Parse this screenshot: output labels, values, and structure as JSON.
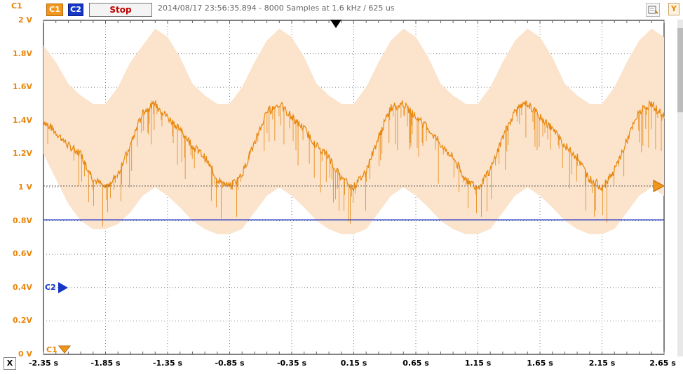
{
  "toolbar": {
    "corner_channel": "C1",
    "c1_label": "C1",
    "c2_label": "C2",
    "stop_label": "Stop",
    "status": "2014/08/17 23:56:35.894 - 8000 Samples at 1.6 kHz / 625 us",
    "tool_icon": "options-icon",
    "y_label": "Y"
  },
  "axes": {
    "y_ticks": [
      "2 V",
      "1.8V",
      "1.6V",
      "1.4V",
      "1.2V",
      "1 V",
      "0.8V",
      "0.6V",
      "0.4V",
      "0.2V",
      "0 V"
    ],
    "x_ticks": [
      "-2.35 s",
      "-1.85 s",
      "-1.35 s",
      "-0.85 s",
      "-0.35 s",
      "0.15 s",
      "0.65 s",
      "1.15 s",
      "1.65 s",
      "2.15 s",
      "2.65 s"
    ],
    "x_button": "X"
  },
  "markers": {
    "c2_label": "C2",
    "c1_label": "C1"
  },
  "colors": {
    "c1": "#e8870c",
    "c1_env": "#fbe3cc",
    "c2": "#1a2fc0",
    "grid": "#808080"
  },
  "chart_data": {
    "type": "line",
    "ylim": [
      0,
      2
    ],
    "xlim": [
      -2.35,
      2.65
    ],
    "grid": true,
    "series": [
      {
        "name": "C1",
        "x": [
          -2.35,
          -2.25,
          -2.15,
          -2.05,
          -1.95,
          -1.85,
          -1.75,
          -1.65,
          -1.55,
          -1.45,
          -1.35,
          -1.25,
          -1.15,
          -1.05,
          -0.95,
          -0.85,
          -0.75,
          -0.65,
          -0.55,
          -0.45,
          -0.35,
          -0.25,
          -0.15,
          -0.05,
          0.05,
          0.15,
          0.25,
          0.35,
          0.45,
          0.55,
          0.65,
          0.75,
          0.85,
          0.95,
          1.05,
          1.15,
          1.25,
          1.35,
          1.45,
          1.55,
          1.65,
          1.75,
          1.85,
          1.95,
          2.05,
          2.15,
          2.25,
          2.35,
          2.45,
          2.55,
          2.65
        ],
        "y": [
          1.4,
          1.33,
          1.25,
          1.2,
          1.05,
          1.0,
          1.08,
          1.25,
          1.45,
          1.5,
          1.42,
          1.35,
          1.25,
          1.18,
          1.05,
          1.0,
          1.08,
          1.27,
          1.45,
          1.5,
          1.42,
          1.35,
          1.25,
          1.18,
          1.05,
          1.0,
          1.1,
          1.3,
          1.48,
          1.5,
          1.42,
          1.35,
          1.26,
          1.18,
          1.05,
          1.0,
          1.1,
          1.3,
          1.46,
          1.5,
          1.42,
          1.35,
          1.25,
          1.18,
          1.05,
          1.0,
          1.1,
          1.28,
          1.45,
          1.5,
          1.42
        ],
        "envelope_upper": [
          1.85,
          1.75,
          1.62,
          1.55,
          1.5,
          1.5,
          1.6,
          1.75,
          1.85,
          1.95,
          1.9,
          1.78,
          1.62,
          1.55,
          1.5,
          1.5,
          1.6,
          1.75,
          1.88,
          1.95,
          1.9,
          1.78,
          1.62,
          1.55,
          1.5,
          1.5,
          1.6,
          1.75,
          1.88,
          1.95,
          1.9,
          1.78,
          1.62,
          1.55,
          1.5,
          1.5,
          1.6,
          1.75,
          1.88,
          1.95,
          1.9,
          1.78,
          1.62,
          1.55,
          1.5,
          1.5,
          1.6,
          1.75,
          1.88,
          1.95,
          1.9
        ],
        "envelope_lower": [
          1.2,
          1.05,
          0.9,
          0.8,
          0.75,
          0.75,
          0.78,
          0.85,
          0.95,
          1.0,
          0.95,
          0.88,
          0.8,
          0.75,
          0.72,
          0.72,
          0.75,
          0.85,
          0.95,
          1.0,
          0.95,
          0.88,
          0.8,
          0.75,
          0.72,
          0.72,
          0.75,
          0.85,
          0.95,
          1.0,
          0.95,
          0.88,
          0.8,
          0.75,
          0.72,
          0.72,
          0.75,
          0.85,
          0.95,
          1.0,
          0.95,
          0.88,
          0.8,
          0.75,
          0.72,
          0.72,
          0.75,
          0.85,
          0.95,
          1.0,
          0.95
        ]
      },
      {
        "name": "C2",
        "x": [
          -2.35,
          2.65
        ],
        "y": [
          0.805,
          0.805
        ]
      }
    ],
    "trigger_level": 1.0
  }
}
